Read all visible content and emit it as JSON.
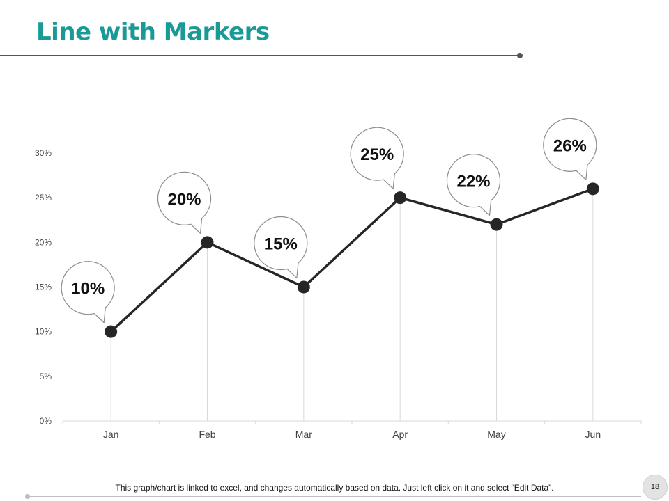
{
  "slide": {
    "title": "Line with Markers",
    "footnote": "This graph/chart is linked to excel, and changes automatically based on data. Just left click on it and select “Edit Data”.",
    "page_number": "18"
  },
  "colors": {
    "title": "#1a9a96",
    "line": "#262626",
    "marker": "#262626",
    "gridline": "#d9d9d9",
    "axis_text": "#404040",
    "callout_fill": "#ffffff",
    "callout_stroke": "#8c8c8c"
  },
  "chart_data": {
    "type": "line",
    "title": "",
    "xlabel": "",
    "ylabel": "",
    "categories": [
      "Jan",
      "Feb",
      "Mar",
      "Apr",
      "May",
      "Jun"
    ],
    "series": [
      {
        "name": "Series 1",
        "values": [
          10,
          20,
          15,
          25,
          22,
          26
        ],
        "labels": [
          "10%",
          "20%",
          "15%",
          "25%",
          "22%",
          "26%"
        ],
        "markers": true
      }
    ],
    "yticks": [
      0,
      5,
      10,
      15,
      20,
      25,
      30
    ],
    "ytick_labels": [
      "0%",
      "5%",
      "10%",
      "15%",
      "20%",
      "25%",
      "30%"
    ],
    "ylim": [
      0,
      30
    ],
    "grid": "vertical",
    "data_label_style": "speech-bubble callouts above-left of each point",
    "legend": "none"
  }
}
